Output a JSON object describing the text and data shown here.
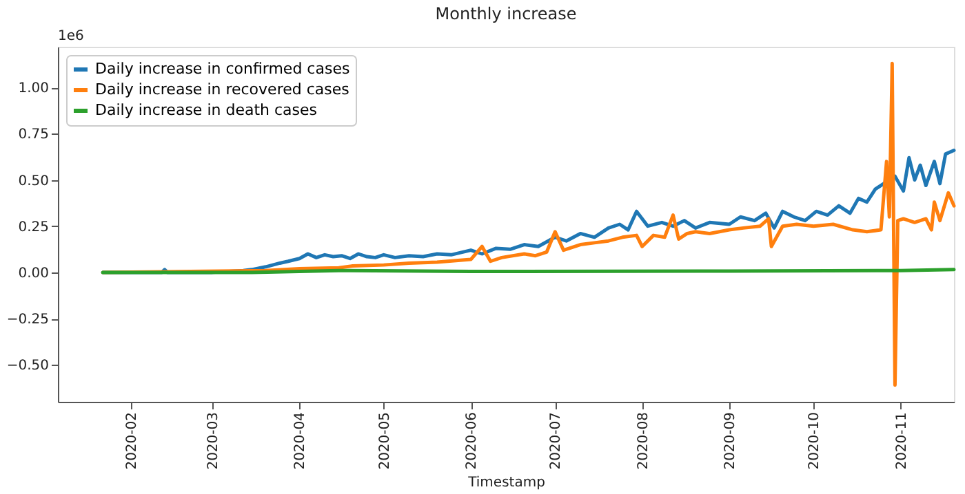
{
  "chart_data": {
    "type": "line",
    "title": "Monthly increase",
    "xlabel": "Timestamp",
    "annotations": [
      "1e6"
    ],
    "xlim": [
      "2020-01-06",
      "2020-11-20"
    ],
    "xticks": [
      {
        "value": "2020-02-01",
        "label": "2020-02"
      },
      {
        "value": "2020-03-01",
        "label": "2020-03"
      },
      {
        "value": "2020-04-01",
        "label": "2020-04"
      },
      {
        "value": "2020-05-01",
        "label": "2020-05"
      },
      {
        "value": "2020-06-01",
        "label": "2020-06"
      },
      {
        "value": "2020-07-01",
        "label": "2020-07"
      },
      {
        "value": "2020-08-01",
        "label": "2020-08"
      },
      {
        "value": "2020-09-01",
        "label": "2020-09"
      },
      {
        "value": "2020-10-01",
        "label": "2020-10"
      },
      {
        "value": "2020-11-01",
        "label": "2020-11"
      }
    ],
    "ylim": [
      -0.7,
      1.22
    ],
    "yticks": [
      {
        "value": -0.5,
        "label": "−0.50"
      },
      {
        "value": -0.25,
        "label": "−0.25"
      },
      {
        "value": 0,
        "label": "0.00"
      },
      {
        "value": 0.25,
        "label": "0.25"
      },
      {
        "value": 0.5,
        "label": "0.50"
      },
      {
        "value": 0.75,
        "label": "0.75"
      },
      {
        "value": 1,
        "label": "1.00"
      }
    ],
    "grid": false,
    "legend": "top left",
    "marker": "none",
    "line_style": "solid",
    "series": [
      {
        "name": "Daily increase in confirmed cases",
        "color": "#1f77b4",
        "x": [
          "2020-01-22",
          "2020-02-05",
          "2020-02-12",
          "2020-02-13",
          "2020-02-14",
          "2020-03-01",
          "2020-03-12",
          "2020-03-15",
          "2020-03-20",
          "2020-03-25",
          "2020-03-28",
          "2020-04-01",
          "2020-04-04",
          "2020-04-07",
          "2020-04-10",
          "2020-04-13",
          "2020-04-16",
          "2020-04-19",
          "2020-04-22",
          "2020-04-25",
          "2020-04-28",
          "2020-05-01",
          "2020-05-05",
          "2020-05-10",
          "2020-05-15",
          "2020-05-20",
          "2020-05-25",
          "2020-06-01",
          "2020-06-05",
          "2020-06-10",
          "2020-06-15",
          "2020-06-20",
          "2020-06-25",
          "2020-07-01",
          "2020-07-05",
          "2020-07-10",
          "2020-07-15",
          "2020-07-20",
          "2020-07-24",
          "2020-07-27",
          "2020-07-30",
          "2020-08-03",
          "2020-08-08",
          "2020-08-12",
          "2020-08-16",
          "2020-08-20",
          "2020-08-25",
          "2020-09-01",
          "2020-09-05",
          "2020-09-10",
          "2020-09-14",
          "2020-09-17",
          "2020-09-20",
          "2020-09-24",
          "2020-09-28",
          "2020-10-02",
          "2020-10-06",
          "2020-10-10",
          "2020-10-14",
          "2020-10-17",
          "2020-10-20",
          "2020-10-23",
          "2020-10-26",
          "2020-10-30",
          "2020-11-02",
          "2020-11-04",
          "2020-11-06",
          "2020-11-08",
          "2020-11-10",
          "2020-11-13",
          "2020-11-15",
          "2020-11-17",
          "2020-11-20"
        ],
        "values": [
          0,
          0,
          0,
          0.015,
          0,
          0,
          0.01,
          0.015,
          0.03,
          0.05,
          0.06,
          0.075,
          0.1,
          0.08,
          0.095,
          0.085,
          0.09,
          0.075,
          0.1,
          0.085,
          0.08,
          0.095,
          0.08,
          0.09,
          0.085,
          0.1,
          0.095,
          0.12,
          0.1,
          0.13,
          0.125,
          0.15,
          0.14,
          0.19,
          0.17,
          0.21,
          0.19,
          0.24,
          0.26,
          0.23,
          0.33,
          0.25,
          0.27,
          0.25,
          0.28,
          0.24,
          0.27,
          0.26,
          0.3,
          0.28,
          0.32,
          0.24,
          0.33,
          0.3,
          0.28,
          0.33,
          0.31,
          0.36,
          0.32,
          0.4,
          0.38,
          0.45,
          0.48,
          0.52,
          0.44,
          0.62,
          0.5,
          0.58,
          0.47,
          0.6,
          0.48,
          0.64,
          0.66
        ]
      },
      {
        "name": "Daily increase in recovered cases",
        "color": "#ff7f0e",
        "x": [
          "2020-01-22",
          "2020-03-20",
          "2020-04-01",
          "2020-04-15",
          "2020-04-20",
          "2020-05-01",
          "2020-05-10",
          "2020-05-20",
          "2020-06-01",
          "2020-06-05",
          "2020-06-08",
          "2020-06-12",
          "2020-06-20",
          "2020-06-24",
          "2020-06-28",
          "2020-07-01",
          "2020-07-04",
          "2020-07-10",
          "2020-07-15",
          "2020-07-20",
          "2020-07-25",
          "2020-07-30",
          "2020-08-01",
          "2020-08-05",
          "2020-08-09",
          "2020-08-12",
          "2020-08-14",
          "2020-08-17",
          "2020-08-20",
          "2020-08-25",
          "2020-09-01",
          "2020-09-06",
          "2020-09-12",
          "2020-09-15",
          "2020-09-16",
          "2020-09-20",
          "2020-09-25",
          "2020-10-01",
          "2020-10-08",
          "2020-10-15",
          "2020-10-20",
          "2020-10-25",
          "2020-10-27",
          "2020-10-28",
          "2020-10-29",
          "2020-10-30",
          "2020-10-31",
          "2020-11-02",
          "2020-11-06",
          "2020-11-10",
          "2020-11-12",
          "2020-11-13",
          "2020-11-15",
          "2020-11-18",
          "2020-11-20"
        ],
        "values": [
          0,
          0.01,
          0.02,
          0.025,
          0.035,
          0.04,
          0.05,
          0.055,
          0.07,
          0.14,
          0.06,
          0.08,
          0.1,
          0.09,
          0.11,
          0.22,
          0.12,
          0.15,
          0.16,
          0.17,
          0.19,
          0.2,
          0.14,
          0.2,
          0.19,
          0.31,
          0.18,
          0.21,
          0.22,
          0.21,
          0.23,
          0.24,
          0.25,
          0.29,
          0.14,
          0.25,
          0.26,
          0.25,
          0.26,
          0.23,
          0.22,
          0.23,
          0.6,
          0.3,
          1.13,
          -0.61,
          0.28,
          0.29,
          0.27,
          0.29,
          0.23,
          0.38,
          0.28,
          0.43,
          0.36
        ]
      },
      {
        "name": "Daily increase in death cases",
        "color": "#2ca02c",
        "x": [
          "2020-01-22",
          "2020-03-15",
          "2020-04-15",
          "2020-06-01",
          "2020-09-01",
          "2020-11-01",
          "2020-11-20"
        ],
        "values": [
          0,
          0,
          0.01,
          0.005,
          0.007,
          0.01,
          0.015
        ]
      }
    ]
  }
}
